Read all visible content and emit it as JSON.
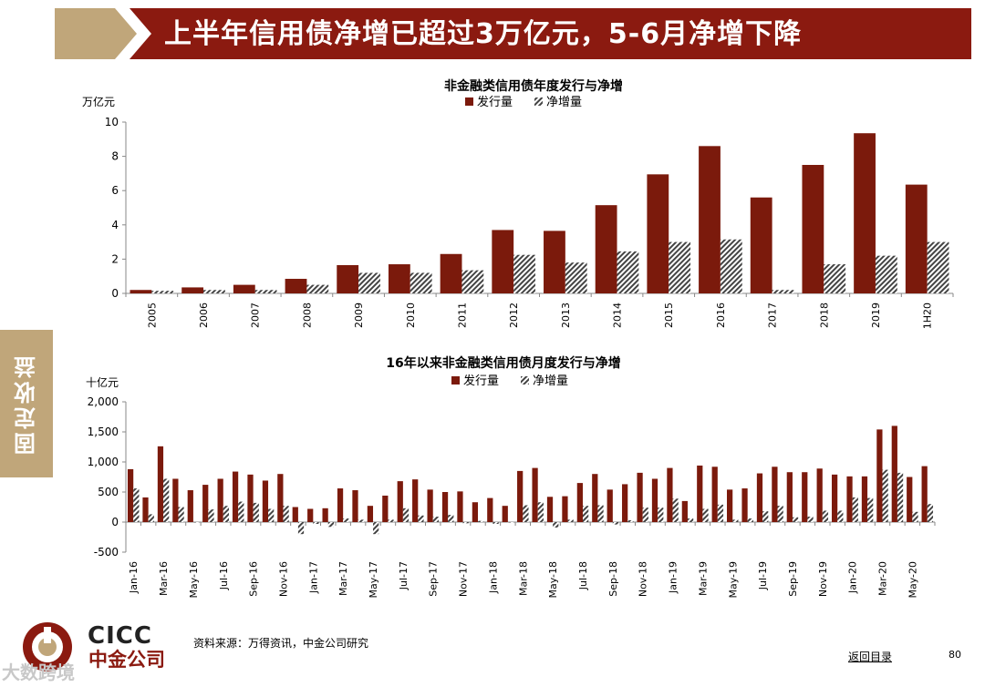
{
  "header": {
    "title": "上半年信用债净增已超过3万亿元，5-6月净增下降"
  },
  "side_tab": {
    "label": "固定收益"
  },
  "footer": {
    "source": "资料来源：万得资讯，中金公司研究",
    "back_link": "返回目录",
    "page_number": "80",
    "logo_en": "CICC",
    "logo_cn": "中金公司",
    "watermark": "大数跨境"
  },
  "colors": {
    "banner": "#8b1a10",
    "banner_left": "#c0a67a",
    "issuance": "#7b1a0c",
    "net": "#444444",
    "side_tab": "#c0a67a"
  },
  "chart_data": [
    {
      "type": "bar",
      "title": "非金融类信用债年度发行与净增",
      "ylabel": "万亿元",
      "xlabel": "",
      "ylim": [
        0,
        10
      ],
      "yticks": [
        0,
        2,
        4,
        6,
        8,
        10
      ],
      "ytick_labels": [
        "0",
        "2",
        "4",
        "6",
        "8",
        "10"
      ],
      "legend_position": "top-center",
      "grid": false,
      "categories": [
        "2005",
        "2006",
        "2007",
        "2008",
        "2009",
        "2010",
        "2011",
        "2012",
        "2013",
        "2014",
        "2015",
        "2016",
        "2017",
        "2018",
        "2019",
        "1H20"
      ],
      "series": [
        {
          "name": "发行量",
          "values": [
            0.2,
            0.35,
            0.5,
            0.85,
            1.65,
            1.7,
            2.3,
            3.7,
            3.65,
            5.15,
            6.95,
            8.6,
            5.6,
            7.5,
            9.35,
            6.35
          ]
        },
        {
          "name": "净增量",
          "values": [
            0.15,
            0.2,
            0.2,
            0.5,
            1.2,
            1.2,
            1.35,
            2.25,
            1.8,
            2.45,
            3.0,
            3.15,
            0.2,
            1.7,
            2.2,
            3.0
          ]
        }
      ]
    },
    {
      "type": "bar",
      "title": "16年以来非金融类信用债月度发行与净增",
      "ylabel": "十亿元",
      "xlabel": "",
      "ylim": [
        -500,
        2000
      ],
      "yticks": [
        -500,
        0,
        500,
        1000,
        1500,
        2000
      ],
      "ytick_labels": [
        "-500",
        "0",
        "500",
        "1,000",
        "1,500",
        "2,000"
      ],
      "legend_position": "top-center",
      "grid": false,
      "tick_labels": [
        "Jan-16",
        "Mar-16",
        "May-16",
        "Jul-16",
        "Sep-16",
        "Nov-16",
        "Jan-17",
        "Mar-17",
        "May-17",
        "Jul-17",
        "Sep-17",
        "Nov-17",
        "Jan-18",
        "Mar-18",
        "May-18",
        "Jul-18",
        "Sep-18",
        "Nov-18",
        "Jan-19",
        "Mar-19",
        "May-19",
        "Jul-19",
        "Sep-19",
        "Nov-19",
        "Jan-20",
        "Mar-20",
        "May-20"
      ],
      "categories": [
        "Jan-16",
        "Feb-16",
        "Mar-16",
        "Apr-16",
        "May-16",
        "Jun-16",
        "Jul-16",
        "Aug-16",
        "Sep-16",
        "Oct-16",
        "Nov-16",
        "Dec-16",
        "Jan-17",
        "Feb-17",
        "Mar-17",
        "Apr-17",
        "May-17",
        "Jun-17",
        "Jul-17",
        "Aug-17",
        "Sep-17",
        "Oct-17",
        "Nov-17",
        "Dec-17",
        "Jan-18",
        "Feb-18",
        "Mar-18",
        "Apr-18",
        "May-18",
        "Jun-18",
        "Jul-18",
        "Aug-18",
        "Sep-18",
        "Oct-18",
        "Nov-18",
        "Dec-18",
        "Jan-19",
        "Feb-19",
        "Mar-19",
        "Apr-19",
        "May-19",
        "Jun-19",
        "Jul-19",
        "Aug-19",
        "Sep-19",
        "Oct-19",
        "Nov-19",
        "Dec-19",
        "Jan-20",
        "Feb-20",
        "Mar-20",
        "Apr-20",
        "May-20",
        "Jun-20"
      ],
      "series": [
        {
          "name": "发行量",
          "values": [
            880,
            410,
            1260,
            720,
            530,
            620,
            720,
            840,
            790,
            690,
            800,
            250,
            220,
            230,
            560,
            530,
            270,
            440,
            680,
            710,
            540,
            500,
            510,
            330,
            400,
            270,
            850,
            900,
            420,
            430,
            650,
            800,
            540,
            630,
            820,
            720,
            900,
            350,
            940,
            920,
            540,
            560,
            810,
            920,
            830,
            830,
            890,
            790,
            760,
            760,
            1540,
            1600,
            750,
            930
          ]
        },
        {
          "name": "净增量",
          "values": [
            560,
            130,
            720,
            250,
            0,
            210,
            270,
            340,
            320,
            220,
            270,
            -200,
            -30,
            -80,
            60,
            40,
            -200,
            40,
            230,
            110,
            90,
            120,
            -20,
            20,
            -30,
            0,
            280,
            330,
            -90,
            40,
            270,
            280,
            -40,
            30,
            240,
            240,
            390,
            60,
            220,
            290,
            40,
            60,
            180,
            270,
            80,
            90,
            190,
            190,
            410,
            400,
            870,
            820,
            170,
            300
          ]
        }
      ]
    }
  ]
}
